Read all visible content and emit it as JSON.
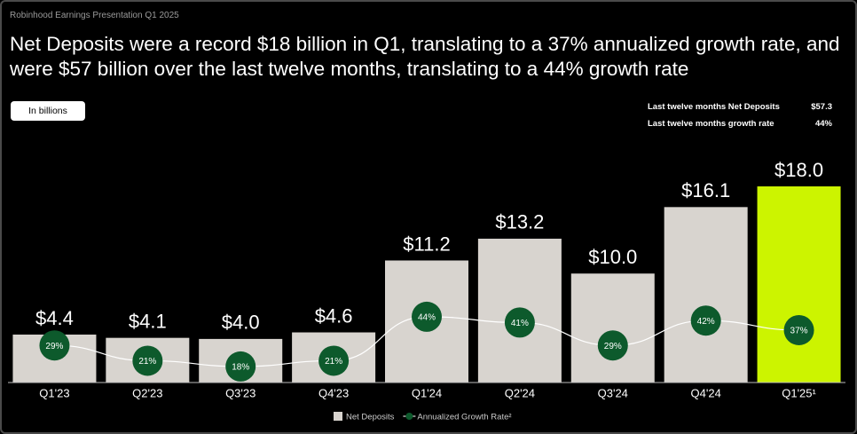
{
  "header": "Robinhood Earnings Presentation Q1 2025",
  "summary": [
    {
      "label": "Last twelve months Net Deposits",
      "value": "$57.3"
    },
    {
      "label": "Last twelve months growth rate",
      "value": "44%"
    }
  ],
  "chart_data": {
    "type": "bar",
    "title": "Net Deposits were a record $18 billion in Q1, translating to a 37% annualized growth rate, and were $57 billion over the last twelve months, translating to a 44% growth rate",
    "unit_note": "In billions",
    "categories": [
      "Q1'23",
      "Q2'23",
      "Q3'23",
      "Q4'23",
      "Q1'24",
      "Q2'24",
      "Q3'24",
      "Q4'24",
      "Q1'25¹"
    ],
    "ylim": [
      0,
      18
    ],
    "y2lim": [
      9.6,
      112.2
    ],
    "series": [
      {
        "name": "Net Deposits",
        "type": "bar",
        "color": "#d8d4cf",
        "colors": [
          "#d8d4cf",
          "#d8d4cf",
          "#d8d4cf",
          "#d8d4cf",
          "#d8d4cf",
          "#d8d4cf",
          "#d8d4cf",
          "#d8d4cf",
          "#ccf400"
        ],
        "values": [
          4.4,
          4.1,
          4.0,
          4.6,
          11.2,
          13.2,
          10.0,
          16.1,
          18.0
        ],
        "value_labels": [
          "$4.4",
          "$4.1",
          "$4.0",
          "$4.6",
          "$11.2",
          "$13.2",
          "$10.0",
          "$16.1",
          "$18.0"
        ]
      },
      {
        "name": "Annualized Growth Rate²",
        "type": "line",
        "axis": "y2",
        "color": "#0d5a2c",
        "values": [
          29,
          21,
          18,
          21,
          44,
          41,
          29,
          42,
          37
        ],
        "value_labels": [
          "29%",
          "21%",
          "18%",
          "21%",
          "44%",
          "41%",
          "29%",
          "42%",
          "37%"
        ]
      }
    ]
  }
}
